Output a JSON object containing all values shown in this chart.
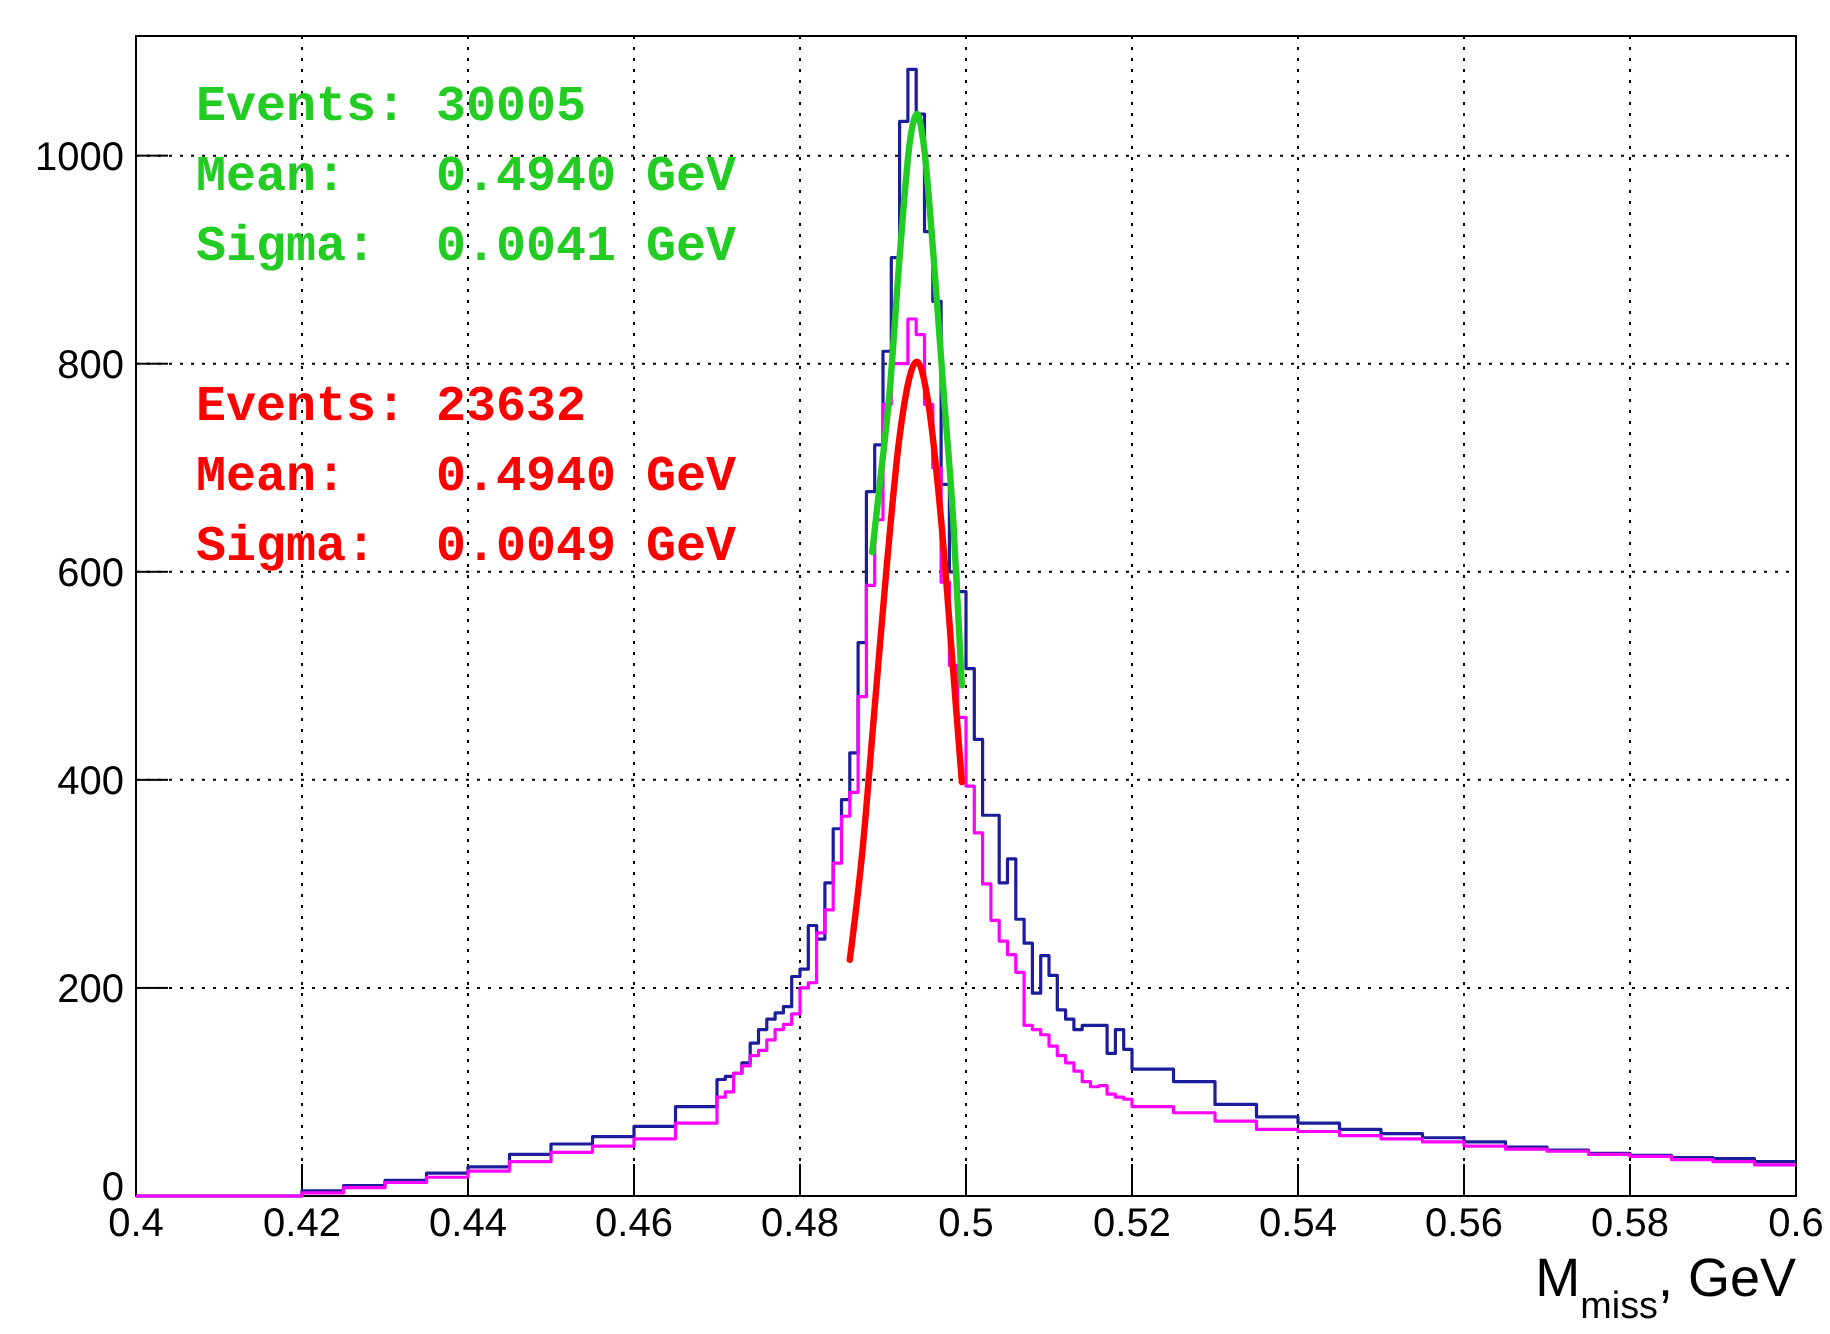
{
  "chart_data": {
    "type": "histogram",
    "xlabel": "M$_{miss}$, GeV",
    "bins": [
      0.4,
      0.405,
      0.41,
      0.415,
      0.42,
      0.425,
      0.43,
      0.435,
      0.44,
      0.445,
      0.45,
      0.455,
      0.46,
      0.465,
      0.47,
      0.471,
      0.472,
      0.473,
      0.474,
      0.475,
      0.476,
      0.477,
      0.478,
      0.479,
      0.48,
      0.481,
      0.482,
      0.483,
      0.484,
      0.485,
      0.486,
      0.487,
      0.488,
      0.489,
      0.49,
      0.491,
      0.492,
      0.493,
      0.494,
      0.495,
      0.496,
      0.497,
      0.498,
      0.499,
      0.5,
      0.501,
      0.502,
      0.503,
      0.504,
      0.505,
      0.506,
      0.507,
      0.508,
      0.509,
      0.51,
      0.511,
      0.512,
      0.513,
      0.514,
      0.515,
      0.516,
      0.517,
      0.518,
      0.519,
      0.52,
      0.525,
      0.53,
      0.535,
      0.54,
      0.545,
      0.55,
      0.555,
      0.56,
      0.565,
      0.57,
      0.575,
      0.58,
      0.585,
      0.59,
      0.595,
      0.6
    ],
    "series": [
      {
        "color": "#1c1c9c",
        "values": [
          0,
          0,
          0,
          0,
          5,
          10,
          15,
          22,
          28,
          40,
          50,
          57,
          67,
          86,
          112,
          115,
          118,
          128,
          147,
          160,
          170,
          176,
          182,
          211,
          218,
          260,
          247,
          301,
          353,
          381,
          426,
          532,
          677,
          722,
          812,
          902,
          1033,
          1083,
          1040,
          927,
          860,
          684,
          600,
          581,
          507,
          439,
          366,
          366,
          301,
          324,
          266,
          243,
          195,
          231,
          212,
          179,
          170,
          160,
          164,
          164,
          164,
          137,
          160,
          141,
          122,
          110,
          88,
          76,
          70,
          64,
          60,
          56,
          52,
          47,
          44,
          41,
          39,
          37,
          36,
          33
        ]
      },
      {
        "color": "#ff00ff",
        "values": [
          0,
          0,
          0,
          0,
          3,
          8,
          13,
          18,
          24,
          33,
          42,
          48,
          55,
          70,
          95,
          100,
          118,
          125,
          135,
          140,
          150,
          160,
          165,
          175,
          200,
          205,
          253,
          275,
          320,
          365,
          388,
          480,
          587,
          650,
          761,
          800,
          800,
          843,
          828,
          761,
          700,
          590,
          510,
          460,
          394,
          349,
          300,
          265,
          245,
          232,
          215,
          164,
          160,
          155,
          144,
          135,
          128,
          120,
          110,
          105,
          106,
          98,
          95,
          93,
          86,
          80,
          72,
          64,
          62,
          58,
          55,
          52,
          48,
          45,
          43,
          40,
          38,
          35,
          33,
          30
        ]
      },
      {
        "type": "line",
        "color": "#22cc22",
        "x": [
          0.4887,
          0.4896,
          0.4908,
          0.492,
          0.4933,
          0.4941,
          0.4949,
          0.4961,
          0.4973,
          0.4985,
          0.4995
        ],
        "values": [
          619,
          683,
          773,
          902,
          1017,
          1040,
          1011,
          902,
          773,
          645,
          491
        ]
      },
      {
        "type": "line",
        "color": "#ff0000",
        "x": [
          0.486,
          0.4875,
          0.489,
          0.4905,
          0.492,
          0.4941,
          0.4955,
          0.497,
          0.4985,
          0.4995
        ],
        "values": [
          227,
          330,
          470,
          610,
          730,
          802,
          760,
          650,
          500,
          398
        ]
      }
    ],
    "xlim": [
      0.4,
      0.6
    ],
    "xticks": [
      {
        "value": 0.4,
        "label": "0.4"
      },
      0.42,
      0.44,
      0.46,
      0.48,
      {
        "value": 0.5,
        "label": "0.5"
      },
      0.52,
      0.54,
      0.56,
      0.58,
      {
        "value": 0.6,
        "label": "0.6"
      }
    ],
    "ylim": [
      0,
      1115
    ],
    "yticks": [
      0,
      200,
      400,
      600,
      800,
      1000
    ],
    "grid": true,
    "annotations": [
      "Events: 30005",
      "Mean:   0.4940 GeV",
      "Sigma:  0.0041 GeV",
      "Events: 23632",
      "Mean:   0.4940 GeV",
      "Sigma:  0.0049 GeV"
    ]
  }
}
